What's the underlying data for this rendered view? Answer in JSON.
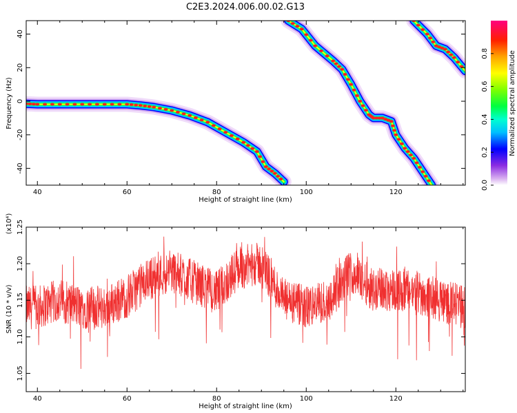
{
  "title": "C2E3.2024.006.00.02.G13",
  "chart_data": [
    {
      "type": "heatmap",
      "xlabel": "Height of straight line (km)",
      "ylabel": "Frequency (Hz)",
      "xlim": [
        37.5,
        135.5
      ],
      "ylim": [
        -50,
        48
      ],
      "xticks": [
        40,
        60,
        80,
        100,
        120
      ],
      "yticks": [
        -40,
        -20,
        0,
        20,
        40
      ],
      "colorbar": {
        "label": "Normalized spectral amplitude",
        "range": [
          0,
          1
        ],
        "ticks": [
          0.0,
          0.2,
          0.4,
          0.6,
          0.8
        ]
      },
      "traces": [
        {
          "x": [
            37.5,
            40,
            45,
            50,
            55,
            60,
            63,
            66,
            70,
            74,
            78,
            82,
            86,
            89,
            91,
            93,
            95
          ],
          "y": [
            -1.5,
            -1.8,
            -1.8,
            -1.8,
            -1.8,
            -1.8,
            -2.5,
            -3.5,
            -5.5,
            -8.5,
            -12.5,
            -18.5,
            -24.5,
            -30,
            -39,
            -43,
            -48
          ]
        },
        {
          "x": [
            96,
            99,
            102,
            106,
            108,
            110,
            112,
            114,
            115,
            117,
            119,
            120,
            122,
            124,
            126,
            128
          ],
          "y": [
            48,
            43,
            33,
            24,
            19,
            10,
            0,
            -8,
            -10,
            -10,
            -12,
            -20,
            -28,
            -34,
            -42,
            -50
          ]
        },
        {
          "x": [
            124,
            127,
            129,
            131,
            133,
            135.5
          ],
          "y": [
            48,
            40,
            33,
            31,
            26,
            18
          ]
        }
      ]
    },
    {
      "type": "line",
      "xlabel": "Height of straight line (km)",
      "ylabel": "SNR (10 * v/v)",
      "scale_note": "(x10⁴)",
      "xlim": [
        37.5,
        135.5
      ],
      "ylim": [
        1.025,
        1.25
      ],
      "xticks": [
        40,
        60,
        80,
        100,
        120
      ],
      "yticks": [
        1.05,
        1.1,
        1.15,
        1.2,
        1.25
      ],
      "color": "#f03030",
      "x": [
        37.5,
        40,
        45,
        50,
        55,
        60,
        65,
        70,
        75,
        80,
        85,
        90,
        95,
        100,
        105,
        110,
        115,
        120,
        125,
        130,
        135.5
      ],
      "y": [
        1.14,
        1.14,
        1.15,
        1.14,
        1.14,
        1.155,
        1.18,
        1.19,
        1.175,
        1.16,
        1.195,
        1.2,
        1.15,
        1.14,
        1.15,
        1.19,
        1.165,
        1.165,
        1.16,
        1.15,
        1.14
      ]
    }
  ]
}
